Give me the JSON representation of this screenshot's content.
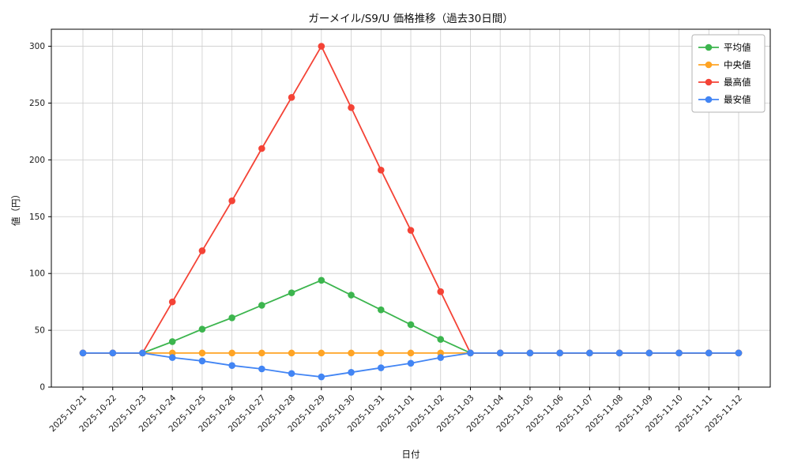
{
  "chart_data": {
    "type": "line",
    "title": "ガーメイル/S9/U 価格推移（過去30日間）",
    "xlabel": "日付",
    "ylabel": "値（円）",
    "x": [
      "2025-10-21",
      "2025-10-22",
      "2025-10-23",
      "2025-10-24",
      "2025-10-25",
      "2025-10-26",
      "2025-10-27",
      "2025-10-28",
      "2025-10-29",
      "2025-10-30",
      "2025-10-31",
      "2025-11-01",
      "2025-11-02",
      "2025-11-03",
      "2025-11-04",
      "2025-11-05",
      "2025-11-06",
      "2025-11-07",
      "2025-11-08",
      "2025-11-09",
      "2025-11-10",
      "2025-11-11",
      "2025-11-12"
    ],
    "yticks": [
      0,
      50,
      100,
      150,
      200,
      250,
      300
    ],
    "ylim": [
      0,
      315
    ],
    "grid": true,
    "legend_position": "upper-right",
    "colors": {
      "grid": "#cccccc",
      "frame": "#000000",
      "legend_border": "#b3b3b3"
    },
    "series": [
      {
        "key": "average",
        "name": "平均値",
        "color": "#3cb54e",
        "values": [
          30,
          30,
          30,
          40,
          51,
          61,
          72,
          83,
          94,
          81,
          68,
          55,
          42,
          30,
          30,
          30,
          30,
          30,
          30,
          30,
          30,
          30,
          30
        ]
      },
      {
        "key": "median",
        "name": "中央値",
        "color": "#ffa424",
        "values": [
          30,
          30,
          30,
          30,
          30,
          30,
          30,
          30,
          30,
          30,
          30,
          30,
          30,
          30,
          30,
          30,
          30,
          30,
          30,
          30,
          30,
          30,
          30
        ]
      },
      {
        "key": "max",
        "name": "最高値",
        "color": "#f44336",
        "values": [
          30,
          30,
          30,
          75,
          120,
          164,
          210,
          255,
          300,
          246,
          191,
          138,
          84,
          30,
          30,
          30,
          30,
          30,
          30,
          30,
          30,
          30,
          30
        ]
      },
      {
        "key": "min",
        "name": "最安値",
        "color": "#4285f4",
        "values": [
          30,
          30,
          30,
          26,
          23,
          19,
          16,
          12,
          9,
          13,
          17,
          21,
          26,
          30,
          30,
          30,
          30,
          30,
          30,
          30,
          30,
          30,
          30
        ]
      }
    ]
  }
}
